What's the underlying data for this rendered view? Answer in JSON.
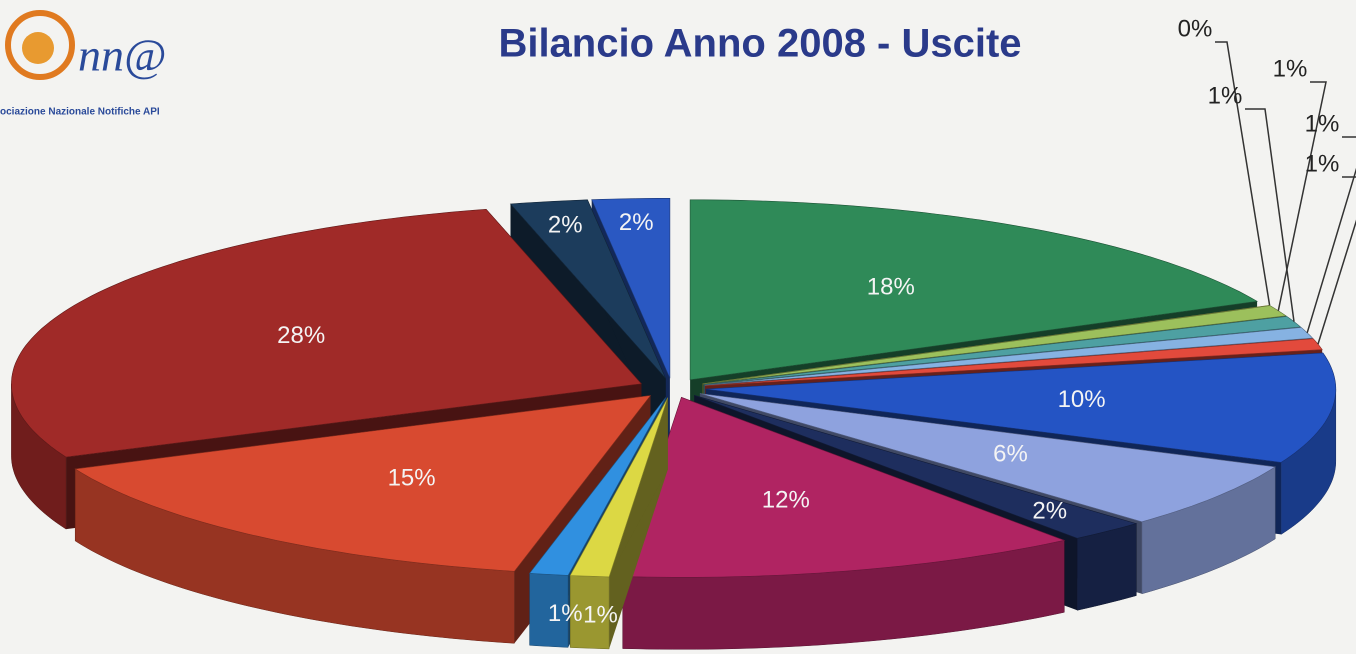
{
  "logo": {
    "mark": "nn@",
    "subtitle": "ociazione Nazionale Notifiche API"
  },
  "chart_data": {
    "type": "pie",
    "title": "Bilancio Anno 2008 - Uscite",
    "values": [
      18,
      0,
      1,
      1,
      1,
      1,
      10,
      6,
      2,
      12,
      1,
      1,
      15,
      28,
      2,
      2
    ],
    "value_labels": [
      "18%",
      "0%",
      "1%",
      "1%",
      "1%",
      "1%",
      "10%",
      "6%",
      "2%",
      "12%",
      "1%",
      "1%",
      "15%",
      "28%",
      "2%",
      "2%"
    ],
    "colors": [
      "#2f8a58",
      "#e6dc5a",
      "#9cc05c",
      "#4ea0a2",
      "#86b2e2",
      "#e24a3c",
      "#2454c4",
      "#8ea2de",
      "#1e2e5e",
      "#b02462",
      "#dcd844",
      "#3090e0",
      "#d84a30",
      "#a02a28",
      "#1c3c5c",
      "#2a58c2"
    ]
  }
}
